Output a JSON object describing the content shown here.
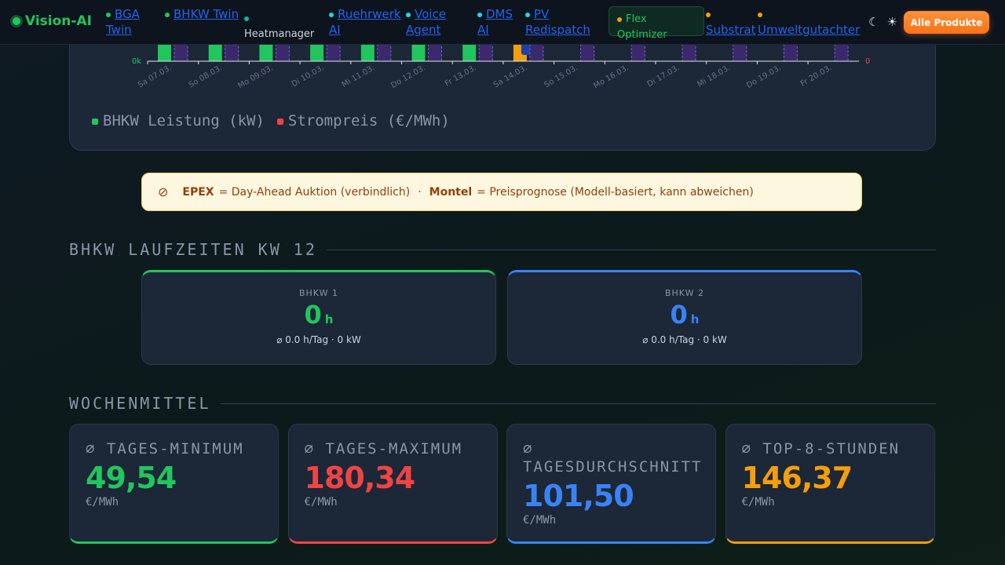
{
  "nav": {
    "logo": "Vision-AI",
    "items": [
      "BGA Twin",
      "BHKW Twin",
      "Heatmanager",
      "Ruehrwerk AI",
      "Voice Agent",
      "DMS AI",
      "PV Redispatch",
      "Flex Optimizer",
      "Substrat",
      "Umweltgutachter"
    ],
    "icons": [
      "☾",
      "☀"
    ],
    "button": "Alle Produkte"
  },
  "chart": {
    "y_left_label": "0k",
    "y_right_label": "0",
    "x_labels": [
      "Sa 07.03.",
      "So 08.03.",
      "Mo 09.03.",
      "Di 10.03.",
      "Mi 11.03.",
      "Do 12.03.",
      "Fr 13.03.",
      "Sa 14.03.",
      "So 15.03.",
      "Mo 16.03.",
      "Di 17.03.",
      "Mi 18.03.",
      "Do 19.03.",
      "Fr 20.03."
    ],
    "legend": [
      "BHKW Leistung (kW)",
      "Strompreis (€/MWh)"
    ]
  },
  "notice": {
    "icon": "⊘",
    "term1": "EPEX",
    "text1": "= Day-Ahead Auktion (verbindlich)",
    "separator": "·",
    "term2": "Montel",
    "text2": "= Preisprognose (Modell-basiert, kann abweichen)"
  },
  "runtime": {
    "title": "BHKW LAUFZEITEN KW 12",
    "cards": [
      {
        "label": "BHKW 1",
        "value": "0",
        "unit": "h",
        "detail": "⌀ 0.0 h/Tag · 0 kW"
      },
      {
        "label": "BHKW 2",
        "value": "0",
        "unit": "h",
        "detail": "⌀ 0.0 h/Tag · 0 kW"
      }
    ]
  },
  "weekly": {
    "title": "WOCHENMITTEL",
    "cards": [
      {
        "label": "⌀ TAGES-MINIMUM",
        "value": "49,54",
        "unit": "€/MWh"
      },
      {
        "label": "⌀ TAGES-MAXIMUM",
        "value": "180,34",
        "unit": "€/MWh"
      },
      {
        "label": "⌀ TAGESDURCHSCHNITT",
        "value": "101,50",
        "unit": "€/MWh"
      },
      {
        "label": "⌀ TOP-8-STUNDEN",
        "value": "146,37",
        "unit": "€/MWh"
      }
    ]
  }
}
